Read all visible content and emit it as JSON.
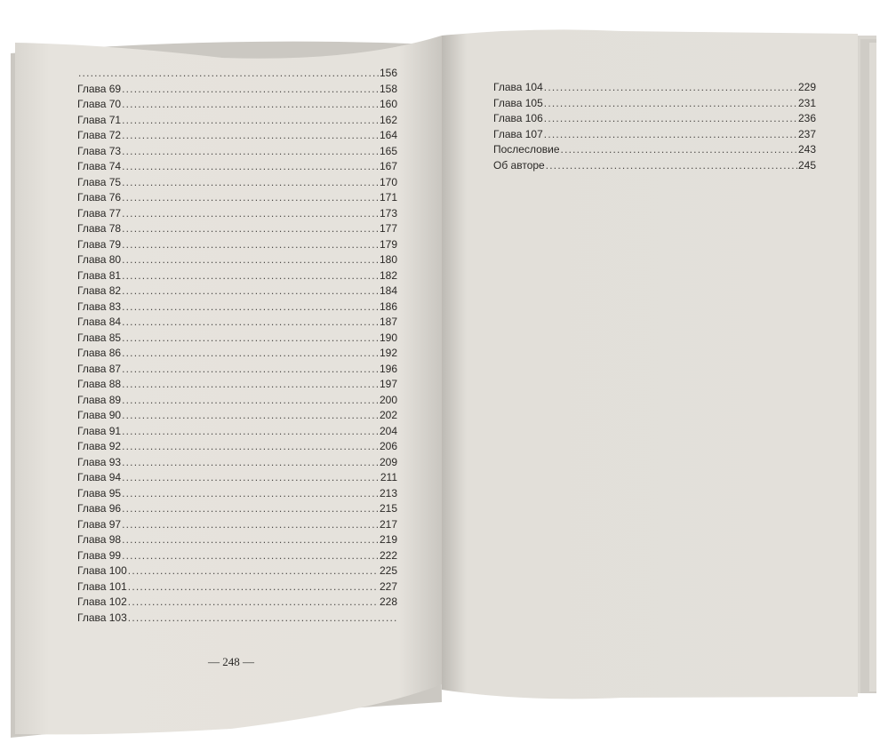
{
  "left_page": {
    "rows": [
      {
        "label": "",
        "page": "156"
      },
      {
        "label": "Глава 69",
        "page": "158"
      },
      {
        "label": "Глава 70",
        "page": "160"
      },
      {
        "label": "Глава 71",
        "page": "162"
      },
      {
        "label": "Глава 72",
        "page": "164"
      },
      {
        "label": "Глава 73",
        "page": "165"
      },
      {
        "label": "Глава 74",
        "page": "167"
      },
      {
        "label": "Глава 75",
        "page": "170"
      },
      {
        "label": "Глава 76",
        "page": "171"
      },
      {
        "label": "Глава 77",
        "page": "173"
      },
      {
        "label": "Глава 78",
        "page": "177"
      },
      {
        "label": "Глава 79",
        "page": "179"
      },
      {
        "label": "Глава 80",
        "page": "180"
      },
      {
        "label": "Глава 81",
        "page": "182"
      },
      {
        "label": "Глава 82",
        "page": "184"
      },
      {
        "label": "Глава 83",
        "page": "186"
      },
      {
        "label": "Глава 84",
        "page": "187"
      },
      {
        "label": "Глава 85",
        "page": "190"
      },
      {
        "label": "Глава 86",
        "page": "192"
      },
      {
        "label": "Глава 87",
        "page": "196"
      },
      {
        "label": "Глава 88",
        "page": "197"
      },
      {
        "label": "Глава 89",
        "page": "200"
      },
      {
        "label": "Глава 90",
        "page": "202"
      },
      {
        "label": "Глава 91",
        "page": "204"
      },
      {
        "label": "Глава 92",
        "page": "206"
      },
      {
        "label": "Глава 93",
        "page": "209"
      },
      {
        "label": "Глава 94",
        "page": "211"
      },
      {
        "label": "Глава 95",
        "page": "213"
      },
      {
        "label": "Глава 96",
        "page": "215"
      },
      {
        "label": "Глава 97",
        "page": "217"
      },
      {
        "label": "Глава 98",
        "page": "219"
      },
      {
        "label": "Глава 99",
        "page": "222"
      },
      {
        "label": "Глава 100",
        "page": "225"
      },
      {
        "label": "Глава 101",
        "page": "227"
      },
      {
        "label": "Глава 102",
        "page": "228"
      },
      {
        "label": "Глава 103",
        "page": ""
      }
    ],
    "folio": "— 248 —"
  },
  "right_page": {
    "rows": [
      {
        "label": "Глава 104",
        "page": "229"
      },
      {
        "label": "Глава 105",
        "page": "231"
      },
      {
        "label": "Глава 106",
        "page": "236"
      },
      {
        "label": "Глава 107",
        "page": "237"
      },
      {
        "label": "Послесловие",
        "page": "243"
      },
      {
        "label": "Об авторе",
        "page": "245"
      }
    ]
  },
  "colors": {
    "page": "#e4e1db",
    "text": "#2a2826",
    "background": "#ffffff"
  }
}
